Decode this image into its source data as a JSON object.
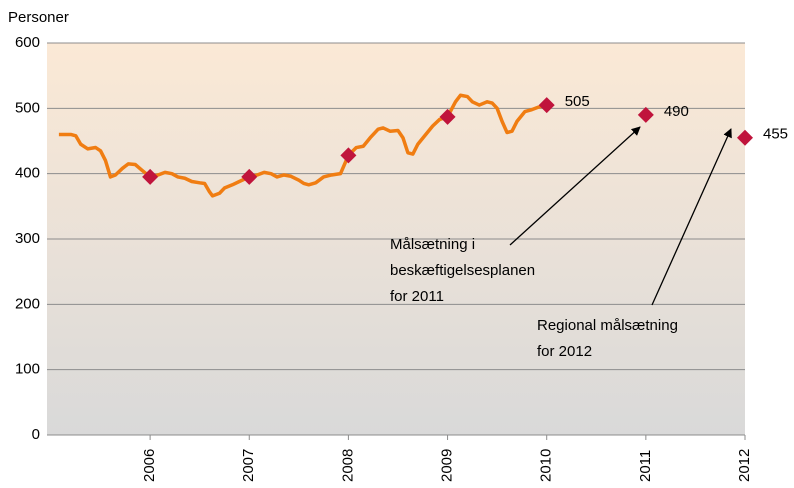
{
  "chart_data": {
    "type": "line",
    "y_label": "Personer",
    "xlim": [
      2004.96,
      2012.0
    ],
    "xticks": [
      2006,
      2007,
      2008,
      2009,
      2010,
      2011,
      2012
    ],
    "ylim": [
      0,
      600
    ],
    "yticks": [
      0,
      100,
      200,
      300,
      400,
      500,
      600
    ],
    "grid": true,
    "series": [
      {
        "color": "#f07d12",
        "style": "line",
        "x": [
          2005.08,
          2005.2,
          2005.25,
          2005.3,
          2005.37,
          2005.45,
          2005.5,
          2005.55,
          2005.6,
          2005.65,
          2005.72,
          2005.78,
          2005.85,
          2005.92,
          2006.0,
          2006.08,
          2006.15,
          2006.22,
          2006.28,
          2006.35,
          2006.42,
          2006.5,
          2006.55,
          2006.6,
          2006.63,
          2006.7,
          2006.75,
          2006.83,
          2006.9,
          2007.0,
          2007.08,
          2007.15,
          2007.22,
          2007.28,
          2007.35,
          2007.42,
          2007.5,
          2007.55,
          2007.6,
          2007.67,
          2007.75,
          2007.83,
          2007.92,
          2008.0,
          2008.08,
          2008.15,
          2008.22,
          2008.3,
          2008.35,
          2008.42,
          2008.5,
          2008.55,
          2008.6,
          2008.65,
          2008.7,
          2008.78,
          2008.85,
          2008.92,
          2009.0,
          2009.08,
          2009.13,
          2009.2,
          2009.25,
          2009.32,
          2009.4,
          2009.45,
          2009.5,
          2009.55,
          2009.6,
          2009.65,
          2009.7,
          2009.78,
          2009.85,
          2009.92,
          2010.0
        ],
        "values": [
          460,
          460,
          458,
          445,
          438,
          440,
          435,
          420,
          395,
          398,
          408,
          415,
          414,
          405,
          395,
          398,
          402,
          400,
          395,
          393,
          388,
          386,
          385,
          372,
          366,
          370,
          378,
          383,
          388,
          395,
          398,
          402,
          400,
          395,
          398,
          396,
          390,
          385,
          383,
          386,
          395,
          398,
          400,
          428,
          440,
          442,
          455,
          468,
          470,
          465,
          466,
          455,
          432,
          430,
          445,
          460,
          473,
          483,
          487,
          510,
          520,
          518,
          510,
          505,
          510,
          508,
          500,
          480,
          463,
          465,
          480,
          495,
          498,
          502,
          505
        ]
      },
      {
        "color": "#c0143c",
        "style": "markers",
        "labels": false,
        "x": [
          2006,
          2007,
          2008,
          2009
        ],
        "values": [
          395,
          395,
          428,
          487
        ]
      },
      {
        "color": "#c0143c",
        "style": "markers",
        "labels": true,
        "x": [
          2010,
          2011,
          2012
        ],
        "values": [
          505,
          490,
          455
        ]
      }
    ],
    "annotations": [
      {
        "lines": [
          "Målsætning i",
          "beskæftigelsesplanen",
          "for 2011"
        ]
      },
      {
        "lines": [
          "Regional målsætning",
          "for 2012"
        ]
      }
    ]
  }
}
